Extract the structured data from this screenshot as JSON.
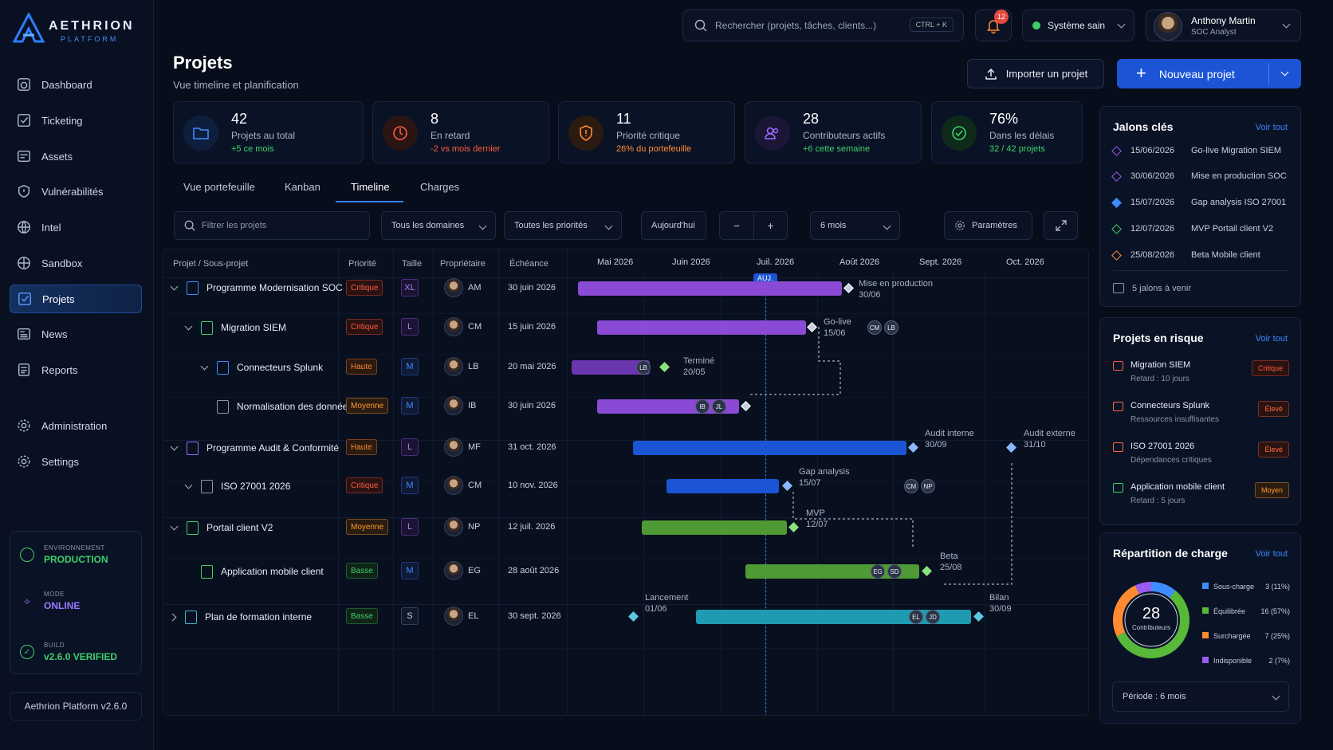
{
  "brand": {
    "name": "AETHRION",
    "sub": "PLATFORM"
  },
  "nav": [
    {
      "label": "Dashboard",
      "icon": "dashboard-icon"
    },
    {
      "label": "Ticketing",
      "icon": "ticketing-icon"
    },
    {
      "label": "Assets",
      "icon": "assets-icon"
    },
    {
      "label": "Vulnérabilités",
      "icon": "shield-icon"
    },
    {
      "label": "Intel",
      "icon": "globe-icon"
    },
    {
      "label": "Sandbox",
      "icon": "sandbox-icon"
    },
    {
      "label": "Projets",
      "icon": "projects-icon",
      "active": true
    },
    {
      "label": "News",
      "icon": "news-icon"
    },
    {
      "label": "Reports",
      "icon": "reports-icon"
    },
    {
      "label": "Administration",
      "icon": "gear-icon"
    },
    {
      "label": "Settings",
      "icon": "gear-icon"
    }
  ],
  "env": {
    "env_label": "ENVIRONNEMENT",
    "env_value": "PRODUCTION",
    "mode_label": "MODE",
    "mode_value": "ONLINE",
    "build_label": "BUILD",
    "build_value": "v2.6.0 VERIFIED"
  },
  "version": "Aethrion Platform v2.6.0",
  "topbar": {
    "search_placeholder": "Rechercher (projets, tâches, clients...)",
    "shortcut": "CTRL + K",
    "notifications": "12",
    "system_status": "Système sain",
    "user_name": "Anthony Martin",
    "user_role": "SOC Analyst"
  },
  "header": {
    "title": "Projets",
    "subtitle": "Vue timeline et planification",
    "import_label": "Importer un projet",
    "new_label": "Nouveau projet"
  },
  "kpis": [
    {
      "value": "42",
      "label": "Projets au total",
      "delta": "+5 ce mois",
      "color": "#3f8cff",
      "delta_color": "#3fcf6a"
    },
    {
      "value": "8",
      "label": "En retard",
      "delta": "-2 vs mois dernier",
      "color": "#ff5a3d",
      "delta_color": "#ff5a3d"
    },
    {
      "value": "11",
      "label": "Priorité critique",
      "delta": "26% du portefeuille",
      "color": "#ff8a30",
      "delta_color": "#ff8a30"
    },
    {
      "value": "28",
      "label": "Contributeurs actifs",
      "delta": "+6 cette semaine",
      "color": "#9a6bff",
      "delta_color": "#3fcf6a"
    },
    {
      "value": "76%",
      "label": "Dans les délais",
      "delta": "32 / 42 projets",
      "color": "#3fcf6a",
      "delta_color": "#3fcf6a"
    }
  ],
  "tabs": [
    "Vue portefeuille",
    "Kanban",
    "Timeline",
    "Charges"
  ],
  "filters": {
    "search_placeholder": "Filtrer les projets",
    "domains": "Tous les domaines",
    "priorities": "Toutes les priorités",
    "today": "Aujourd'hui",
    "minus": "−",
    "plus": "+",
    "range": "6 mois",
    "settings": "Paramètres"
  },
  "table": {
    "headers": [
      "Projet / Sous-projet",
      "Priorité",
      "Taille",
      "Propriétaire",
      "Échéance"
    ],
    "months": [
      "Mai 2026",
      "Juin 2026",
      "Juil. 2026",
      "Août 2026",
      "Sept. 2026",
      "Oct. 2026"
    ],
    "today_label": "AUJ."
  },
  "rows": [
    {
      "name": "Programme Modernisation SOC",
      "priority": "Critique",
      "size": "XL",
      "owner": "AM",
      "due": "30 juin 2026"
    },
    {
      "name": "Migration SIEM",
      "priority": "Critique",
      "size": "L",
      "owner": "CM",
      "due": "15 juin 2026"
    },
    {
      "name": "Connecteurs Splunk",
      "priority": "Haute",
      "size": "M",
      "owner": "LB",
      "due": "20 mai 2026"
    },
    {
      "name": "Normalisation des données",
      "priority": "Moyenne",
      "size": "M",
      "owner": "IB",
      "due": "30 juin 2026"
    },
    {
      "name": "Programme Audit & Conformité",
      "priority": "Haute",
      "size": "L",
      "owner": "MF",
      "due": "31 oct. 2026"
    },
    {
      "name": "ISO 27001 2026",
      "priority": "Critique",
      "size": "M",
      "owner": "CM",
      "due": "10 nov. 2026"
    },
    {
      "name": "Portail client V2",
      "priority": "Moyenne",
      "size": "L",
      "owner": "NP",
      "due": "12 juil. 2026"
    },
    {
      "name": "Application mobile client",
      "priority": "Basse",
      "size": "M",
      "owner": "EG",
      "due": "28 août 2026"
    },
    {
      "name": "Plan de formation interne",
      "priority": "Basse",
      "size": "S",
      "owner": "EL",
      "due": "30 sept. 2026"
    }
  ],
  "gantt": {
    "labels": {
      "m1a": "Mise en production",
      "m1b": "30/06",
      "m2a": "Go-live",
      "m2b": "15/06",
      "m3a": "Terminé",
      "m3b": "20/05",
      "m4a": "Audit interne",
      "m4b": "30/09",
      "m5a": "Audit externe",
      "m5b": "31/10",
      "m6a": "Gap analysis",
      "m6b": "15/07",
      "m7a": "MVP",
      "m7b": "12/07",
      "m8a": "Beta",
      "m8b": "25/08",
      "m9a": "Lancement",
      "m9b": "01/06",
      "m10a": "Bilan",
      "m10b": "30/09"
    },
    "chips": {
      "c1": "CM",
      "c2": "LB",
      "c3": "LB",
      "c4": "IB",
      "c5": "JL",
      "c6": "CM",
      "c7": "NP",
      "c8": "EG",
      "c9": "SD",
      "c10": "EL",
      "c11": "JD"
    }
  },
  "milestones": {
    "title": "Jalons clés",
    "link": "Voir tout",
    "items": [
      {
        "date": "15/06/2026",
        "label": "Go-live Migration SIEM",
        "color": "#9a5cf0"
      },
      {
        "date": "30/06/2026",
        "label": "Mise en production SOC",
        "color": "#9a5cf0"
      },
      {
        "date": "15/07/2026",
        "label": "Gap analysis ISO 27001",
        "color": "#3f8cff"
      },
      {
        "date": "12/07/2026",
        "label": "MVP Portail client V2",
        "color": "#3fcf6a"
      },
      {
        "date": "25/08/2026",
        "label": "Beta Mobile client",
        "color": "#ff8a30"
      }
    ],
    "footer": "5 jalons à venir"
  },
  "risks": {
    "title": "Projets en risque",
    "link": "Voir tout",
    "items": [
      {
        "name": "Migration SIEM",
        "sub": "Retard : 10 jours",
        "badge": "Critique",
        "color": "#ff5a3d"
      },
      {
        "name": "Connecteurs Splunk",
        "sub": "Ressources insuffisantes",
        "badge": "Élevé",
        "color": "#ff6a3d"
      },
      {
        "name": "ISO 27001 2026",
        "sub": "Dépendances critiques",
        "badge": "Élevé",
        "color": "#ff6a3d"
      },
      {
        "name": "Application mobile client",
        "sub": "Retard : 5 jours",
        "badge": "Moyen",
        "color": "#ff9a30"
      }
    ]
  },
  "load": {
    "title": "Répartition de charge",
    "link": "Voir tout",
    "center_value": "28",
    "center_label": "Contributeurs",
    "period": "Période : 6 mois",
    "items": [
      {
        "label": "Sous-charge",
        "value": "3 (11%)",
        "pct": 11,
        "color": "#3f8cff"
      },
      {
        "label": "Équilibrée",
        "value": "16 (57%)",
        "pct": 57,
        "color": "#57b83a"
      },
      {
        "label": "Surchargée",
        "value": "7 (25%)",
        "pct": 25,
        "color": "#ff8a30"
      },
      {
        "label": "Indisponible",
        "value": "2 (7%)",
        "pct": 7,
        "color": "#9a5cf0"
      }
    ]
  }
}
